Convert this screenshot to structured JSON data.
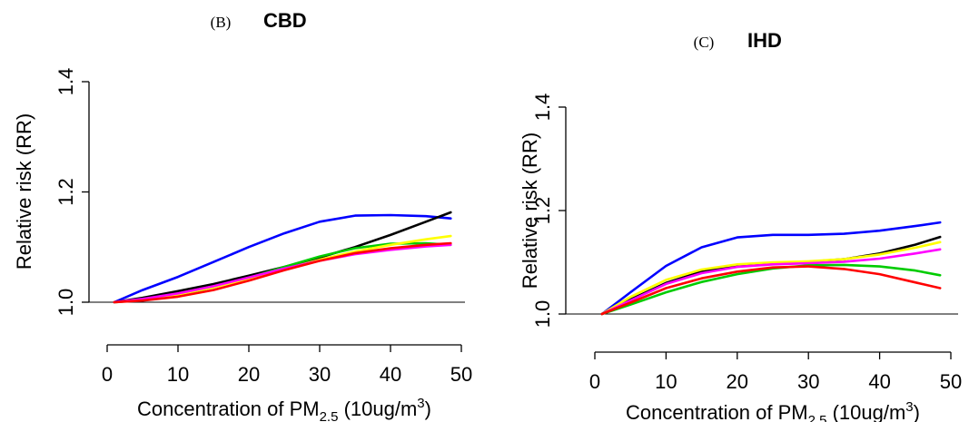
{
  "chart_data": [
    {
      "type": "line",
      "panel_label": "(B)",
      "title": "CBD",
      "xlabel_prefix": "Concentration of PM",
      "xlabel_sub": "2.5",
      "xlabel_mid": " (10ug/m",
      "xlabel_sup": "3",
      "xlabel_end": ")",
      "ylabel": "Relative risk (RR)",
      "xlim": [
        0,
        50
      ],
      "ylim": [
        1.0,
        1.4
      ],
      "xticks": [
        "0",
        "10",
        "20",
        "30",
        "40",
        "50"
      ],
      "yticks": [
        "1.0",
        "1.2",
        "1.4"
      ],
      "grid": false,
      "series": [
        {
          "color": "#0000ff",
          "x": [
            1,
            5,
            10,
            15,
            20,
            25,
            30,
            35,
            40,
            45,
            48.5
          ],
          "values": [
            1.0,
            1.022,
            1.046,
            1.073,
            1.1,
            1.125,
            1.146,
            1.157,
            1.158,
            1.156,
            1.152
          ]
        },
        {
          "color": "#000000",
          "x": [
            1,
            5,
            10,
            15,
            20,
            25,
            30,
            35,
            40,
            45,
            48.5
          ],
          "values": [
            1.0,
            1.008,
            1.02,
            1.033,
            1.048,
            1.064,
            1.081,
            1.1,
            1.122,
            1.146,
            1.163
          ]
        },
        {
          "color": "#00cc00",
          "x": [
            1,
            5,
            10,
            15,
            20,
            25,
            30,
            35,
            40,
            45,
            48.5
          ],
          "values": [
            1.0,
            1.004,
            1.013,
            1.027,
            1.044,
            1.064,
            1.083,
            1.098,
            1.106,
            1.107,
            1.104
          ]
        },
        {
          "color": "#ffff00",
          "x": [
            1,
            5,
            10,
            15,
            20,
            25,
            30,
            35,
            40,
            45,
            48.5
          ],
          "values": [
            1.0,
            1.005,
            1.014,
            1.027,
            1.043,
            1.06,
            1.077,
            1.092,
            1.104,
            1.114,
            1.12
          ]
        },
        {
          "color": "#ff00ff",
          "x": [
            1,
            5,
            10,
            15,
            20,
            25,
            30,
            35,
            40,
            45,
            48.5
          ],
          "values": [
            1.0,
            1.006,
            1.016,
            1.029,
            1.045,
            1.061,
            1.075,
            1.087,
            1.095,
            1.101,
            1.104
          ]
        },
        {
          "color": "#ff0000",
          "x": [
            1,
            5,
            10,
            15,
            20,
            25,
            30,
            35,
            40,
            45,
            48.5
          ],
          "values": [
            1.0,
            1.003,
            1.01,
            1.022,
            1.039,
            1.058,
            1.075,
            1.089,
            1.098,
            1.104,
            1.107
          ]
        }
      ]
    },
    {
      "type": "line",
      "panel_label": "(C)",
      "title": "IHD",
      "xlabel_prefix": "Concentration of PM",
      "xlabel_sub": "2.5",
      "xlabel_mid": " (10ug/m",
      "xlabel_sup": "3",
      "xlabel_end": ")",
      "ylabel": "Relative risk (RR)",
      "xlim": [
        0,
        50
      ],
      "ylim": [
        1.0,
        1.4
      ],
      "xticks": [
        "0",
        "10",
        "20",
        "30",
        "40",
        "50"
      ],
      "yticks": [
        "1.0",
        "1.2",
        "1.4"
      ],
      "grid": false,
      "series": [
        {
          "color": "#0000ff",
          "x": [
            1,
            5,
            10,
            15,
            20,
            25,
            30,
            35,
            40,
            45,
            48.5
          ],
          "values": [
            1.0,
            1.042,
            1.093,
            1.129,
            1.148,
            1.153,
            1.153,
            1.155,
            1.161,
            1.17,
            1.177
          ]
        },
        {
          "color": "#000000",
          "x": [
            1,
            5,
            10,
            15,
            20,
            25,
            30,
            35,
            40,
            45,
            48.5
          ],
          "values": [
            1.0,
            1.028,
            1.06,
            1.082,
            1.094,
            1.099,
            1.101,
            1.106,
            1.117,
            1.134,
            1.149
          ]
        },
        {
          "color": "#ffff00",
          "x": [
            1,
            5,
            10,
            15,
            20,
            25,
            30,
            35,
            40,
            45,
            48.5
          ],
          "values": [
            1.0,
            1.033,
            1.066,
            1.086,
            1.096,
            1.1,
            1.102,
            1.106,
            1.115,
            1.128,
            1.139
          ]
        },
        {
          "color": "#ff00ff",
          "x": [
            1,
            5,
            10,
            15,
            20,
            25,
            30,
            35,
            40,
            45,
            48.5
          ],
          "values": [
            1.0,
            1.026,
            1.058,
            1.079,
            1.091,
            1.096,
            1.098,
            1.101,
            1.107,
            1.117,
            1.125
          ]
        },
        {
          "color": "#00cc00",
          "x": [
            1,
            5,
            10,
            15,
            20,
            25,
            30,
            35,
            40,
            45,
            48.5
          ],
          "values": [
            1.0,
            1.018,
            1.042,
            1.062,
            1.077,
            1.088,
            1.094,
            1.095,
            1.092,
            1.084,
            1.075
          ]
        },
        {
          "color": "#ff0000",
          "x": [
            1,
            5,
            10,
            15,
            20,
            25,
            30,
            35,
            40,
            45,
            48.5
          ],
          "values": [
            1.0,
            1.022,
            1.05,
            1.069,
            1.082,
            1.09,
            1.092,
            1.087,
            1.077,
            1.061,
            1.05
          ]
        }
      ]
    }
  ]
}
